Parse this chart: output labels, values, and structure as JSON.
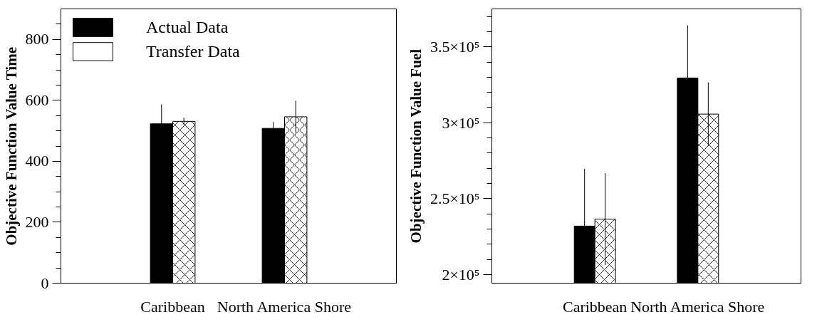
{
  "chart_data": [
    {
      "type": "bar",
      "ylabel": "Objective Function Value Time",
      "categories": [
        "Caribbean",
        "North America Shore"
      ],
      "series": [
        {
          "name": "Actual Data",
          "color": "#000000",
          "values": [
            523,
            508
          ],
          "errors": [
            64,
            21
          ]
        },
        {
          "name": "Transfer Data",
          "color": "#ffffff",
          "values": [
            531,
            546
          ],
          "errors": [
            12,
            53
          ]
        }
      ],
      "ylim": [
        0,
        900
      ],
      "yticks": [
        0,
        {
          "value": 50,
          "label": null
        },
        {
          "value": 100,
          "label": null
        },
        {
          "value": 150,
          "label": null
        },
        200,
        {
          "value": 250,
          "label": null
        },
        {
          "value": 300,
          "label": null
        },
        {
          "value": 350,
          "label": null
        },
        400,
        {
          "value": 450,
          "label": null
        },
        {
          "value": 500,
          "label": null
        },
        {
          "value": 550,
          "label": null
        },
        600,
        {
          "value": 650,
          "label": null
        },
        {
          "value": 700,
          "label": null
        },
        {
          "value": 750,
          "label": null
        },
        800,
        {
          "value": 850,
          "label": null
        }
      ],
      "grid": false,
      "legend": "top left"
    },
    {
      "type": "bar",
      "ylabel": "Objective Function Value Fuel",
      "categories": [
        "Caribbean",
        "North America Shore"
      ],
      "series": [
        {
          "color": "#000000",
          "values": [
            231900,
            329500
          ],
          "errors": [
            37700,
            34700
          ]
        },
        {
          "color": "#ffffff",
          "values": [
            236500,
            305700
          ],
          "errors": [
            30300,
            20900
          ]
        }
      ],
      "ylim": [
        194300,
        375000
      ],
      "yticks": [
        {
          "value": 200000,
          "label": "2×10⁵"
        },
        {
          "value": 210000,
          "label": null
        },
        {
          "value": 220000,
          "label": null
        },
        {
          "value": 230000,
          "label": null
        },
        {
          "value": 240000,
          "label": null
        },
        {
          "value": 250000,
          "label": "2.5×10⁵"
        },
        {
          "value": 260000,
          "label": null
        },
        {
          "value": 270000,
          "label": null
        },
        {
          "value": 280000,
          "label": null
        },
        {
          "value": 290000,
          "label": null
        },
        {
          "value": 300000,
          "label": "3×10⁵"
        },
        {
          "value": 310000,
          "label": null
        },
        {
          "value": 320000,
          "label": null
        },
        {
          "value": 330000,
          "label": null
        },
        {
          "value": 340000,
          "label": null
        },
        {
          "value": 350000,
          "label": "3.5×10⁵"
        },
        {
          "value": 360000,
          "label": null
        },
        {
          "value": 370000,
          "label": null
        }
      ],
      "grid": false,
      "legend": false
    }
  ]
}
